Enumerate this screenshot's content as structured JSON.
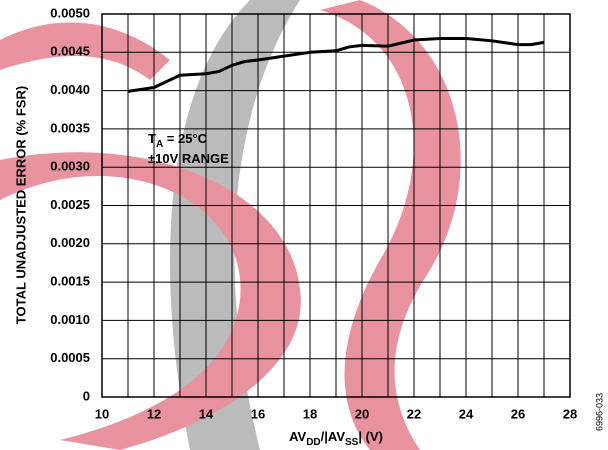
{
  "chart_data": {
    "type": "line",
    "ylabel": "TOTAL UNADJUSTED ERROR (% FSR)",
    "xlabel": [
      {
        "text": "AV"
      },
      {
        "text": "DD",
        "sub": true
      },
      {
        "text": "/|AV"
      },
      {
        "text": "SS",
        "sub": true
      },
      {
        "text": "| (V)"
      }
    ],
    "annotations": [
      [
        {
          "text": "T"
        },
        {
          "text": "A",
          "sub": true
        },
        {
          "text": " = 25°C"
        }
      ],
      [
        {
          "text": "±10V RANGE"
        }
      ]
    ],
    "figure_code": "6996-033",
    "xlim": [
      10,
      28
    ],
    "xticks": [
      10,
      12,
      14,
      16,
      18,
      20,
      22,
      24,
      26,
      28
    ],
    "ylim": [
      0,
      0.005
    ],
    "yticks": [
      0,
      {
        "value": 0.0005,
        "label": "0.0005"
      },
      {
        "value": 0.001,
        "label": "0.0010"
      },
      {
        "value": 0.0015,
        "label": "0.0015"
      },
      {
        "value": 0.002,
        "label": "0.0020"
      },
      {
        "value": 0.0025,
        "label": "0.0025"
      },
      {
        "value": 0.003,
        "label": "0.0030"
      },
      {
        "value": 0.0035,
        "label": "0.0035"
      },
      {
        "value": 0.004,
        "label": "0.0040"
      },
      {
        "value": 0.0045,
        "label": "0.0045"
      },
      {
        "value": 0.005,
        "label": "0.0050"
      }
    ],
    "grid": true,
    "series": [
      {
        "color": "#000000",
        "x": [
          11,
          12,
          12.5,
          13,
          14,
          14.5,
          15,
          15.5,
          16,
          17,
          18,
          19,
          19.5,
          20,
          21,
          21.5,
          22,
          23,
          24,
          25,
          26,
          26.5,
          27
        ],
        "values": [
          0.00399,
          0.00404,
          0.00412,
          0.0042,
          0.00422,
          0.00425,
          0.00433,
          0.00438,
          0.0044,
          0.00445,
          0.0045,
          0.00452,
          0.00457,
          0.00459,
          0.00458,
          0.00462,
          0.00466,
          0.00468,
          0.00468,
          0.00465,
          0.0046,
          0.0046,
          0.00463
        ]
      }
    ]
  }
}
